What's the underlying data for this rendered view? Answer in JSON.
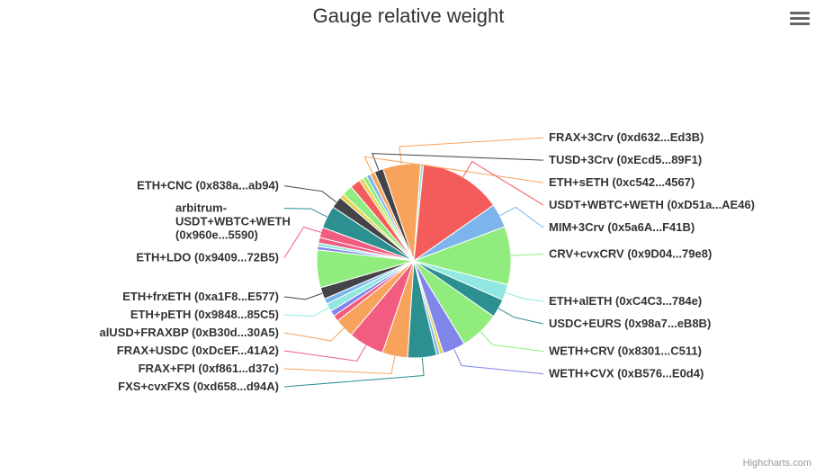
{
  "chart_data": {
    "type": "pie",
    "title": "Gauge relative weight",
    "slices": [
      {
        "name": "USDT+WBTC+WETH (0xD51a...AE46)",
        "value": 12.0,
        "color": "#f45b5b",
        "label_side": "right"
      },
      {
        "name": "MIM+3Crv (0x5a6A...F41B)",
        "value": 3.5,
        "color": "#7cb5ec",
        "label_side": "right"
      },
      {
        "name": "CRV+cvxCRV (0x9D04...79e8)",
        "value": 8.5,
        "color": "#90ed7d",
        "label_side": "right"
      },
      {
        "name": "ETH+alETH (0xC4C3...784e)",
        "value": 2.3,
        "color": "#91e8e1",
        "label_side": "right"
      },
      {
        "name": "USDC+EURS (0x98a7...eB8B)",
        "value": 2.7,
        "color": "#2b908f",
        "label_side": "right"
      },
      {
        "name": "WETH+CRV (0x8301...C511)",
        "value": 5.8,
        "color": "#90ed7d",
        "label_side": "right"
      },
      {
        "name": "WETH+CVX (0xB576...E0d4)",
        "value": 3.3,
        "color": "#8085e9",
        "label_side": "right"
      },
      {
        "name": "",
        "value": 0.5,
        "color": "#e4d354",
        "label_side": "none"
      },
      {
        "name": "",
        "value": 0.5,
        "color": "#7cb5ec",
        "label_side": "none"
      },
      {
        "name": "FXS+cvxFXS (0xd658...d94A)",
        "value": 4.2,
        "color": "#2b908f",
        "label_side": "left"
      },
      {
        "name": "FRAX+FPI (0xf861...d37c)",
        "value": 3.7,
        "color": "#f7a35c",
        "label_side": "left"
      },
      {
        "name": "FRAX+USDC (0xDcEF...41A2)",
        "value": 5.2,
        "color": "#f15c80",
        "label_side": "left"
      },
      {
        "name": "alUSD+FRAXBP (0xB30d...30A5)",
        "value": 2.8,
        "color": "#f7a35c",
        "label_side": "left"
      },
      {
        "name": "",
        "value": 0.9,
        "color": "#f15c80",
        "label_side": "none"
      },
      {
        "name": "",
        "value": 0.8,
        "color": "#8085e9",
        "label_side": "none"
      },
      {
        "name": "ETH+pETH (0x9848...85C5)",
        "value": 1.2,
        "color": "#91e8e1",
        "label_side": "left"
      },
      {
        "name": "",
        "value": 0.8,
        "color": "#7cb5ec",
        "label_side": "none"
      },
      {
        "name": "ETH+frxETH (0xa1F8...E577)",
        "value": 1.7,
        "color": "#434348",
        "label_side": "left"
      },
      {
        "name": "",
        "value": 5.5,
        "color": "#90ed7d",
        "label_side": "none"
      },
      {
        "name": "",
        "value": 0.5,
        "color": "#8085e9",
        "label_side": "none"
      },
      {
        "name": "",
        "value": 0.5,
        "color": "#91e8e1",
        "label_side": "none"
      },
      {
        "name": "",
        "value": 0.8,
        "color": "#f15c80",
        "label_side": "none"
      },
      {
        "name": "ETH+LDO (0x9409...72B5)",
        "value": 1.5,
        "color": "#f15c80",
        "label_side": "left"
      },
      {
        "name": "arbitrum-USDT+WBTC+WETH (0x960e...5590)",
        "value": 3.3,
        "color": "#2b908f",
        "label_side": "left"
      },
      {
        "name": "ETH+CNC (0x838a...ab94)",
        "value": 1.7,
        "color": "#434348",
        "label_side": "left"
      },
      {
        "name": "",
        "value": 0.7,
        "color": "#e4d354",
        "label_side": "none"
      },
      {
        "name": "",
        "value": 1.5,
        "color": "#90ed7d",
        "label_side": "none"
      },
      {
        "name": "",
        "value": 1.5,
        "color": "#f45b5b",
        "label_side": "none"
      },
      {
        "name": "",
        "value": 0.6,
        "color": "#e4d354",
        "label_side": "none"
      },
      {
        "name": "",
        "value": 0.6,
        "color": "#90ed7d",
        "label_side": "none"
      },
      {
        "name": "",
        "value": 0.6,
        "color": "#7cb5ec",
        "label_side": "none"
      },
      {
        "name": "ETH+sETH (0xc542...4567)",
        "value": 0.7,
        "color": "#f7a35c",
        "label_side": "right"
      },
      {
        "name": "TUSD+3Crv (0xEcd5...89F1)",
        "value": 1.3,
        "color": "#434348",
        "label_side": "right"
      },
      {
        "name": "FRAX+3Crv (0xd632...Ed3B)",
        "value": 5.5,
        "color": "#f7a35c",
        "label_side": "right"
      },
      {
        "name": "",
        "value": 0.4,
        "color": "#91e8e1",
        "label_side": "none"
      }
    ]
  },
  "credits": "Highcharts.com",
  "menu": {
    "icon": "hamburger-menu-icon"
  }
}
